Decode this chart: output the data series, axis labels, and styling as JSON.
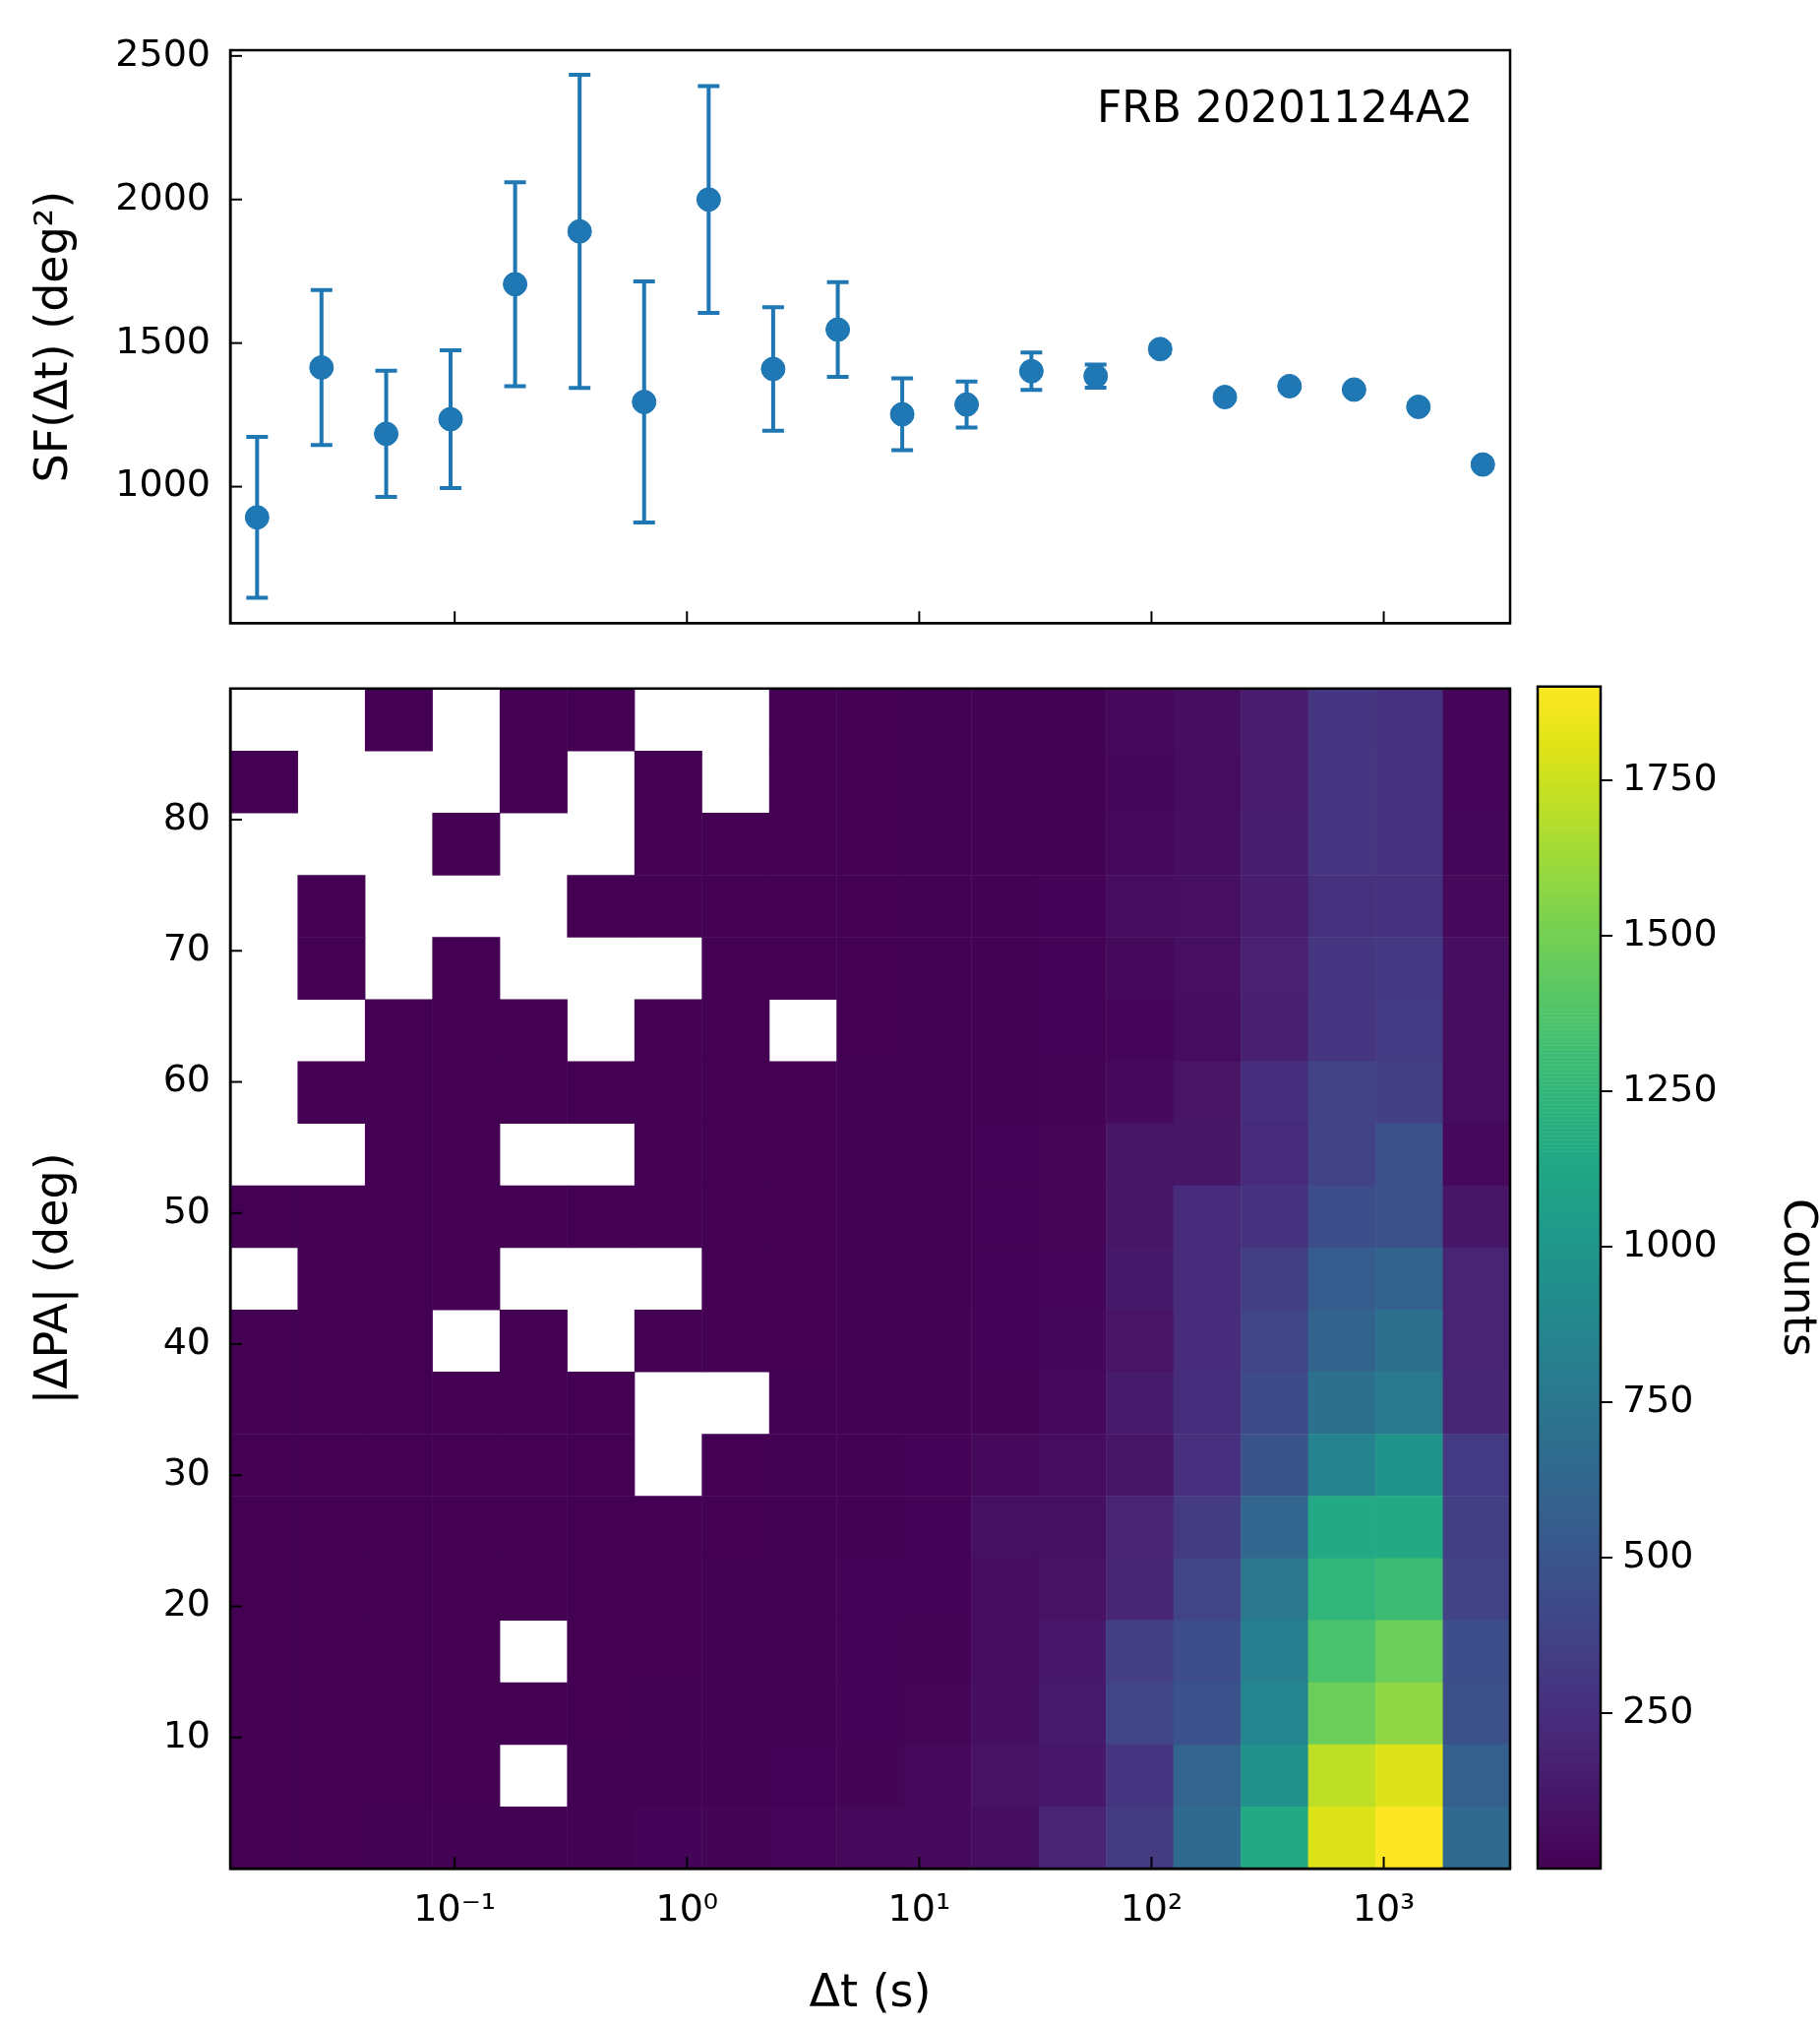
{
  "chart_data": [
    {
      "type": "scatter",
      "ylabel": "SF(Δt) (deg²)",
      "annotations": [
        "FRB 20201124A2"
      ],
      "color": "#1f77b4",
      "marker": "circle",
      "log": "x",
      "tick_labels": "y",
      "x": [
        0.0141,
        0.0267,
        0.0507,
        0.096,
        0.182,
        0.345,
        0.654,
        1.24,
        2.35,
        4.46,
        8.45,
        16.0,
        30.4,
        57.5,
        109,
        207,
        393,
        745,
        1410,
        2670
      ],
      "values": [
        893,
        1415,
        1184,
        1235,
        1705,
        1889,
        1295,
        2000,
        1410,
        1547,
        1252,
        1286,
        1402,
        1385,
        1479,
        1312,
        1350,
        1338,
        1278,
        1077
      ],
      "errors": [
        280,
        270,
        220,
        240,
        355,
        545,
        420,
        395,
        215,
        165,
        125,
        80,
        65,
        40,
        15,
        null,
        null,
        null,
        null,
        null
      ],
      "xlim": [
        0.0108,
        3500
      ],
      "xticks": [
        0.1,
        1,
        10,
        100,
        1000
      ],
      "ylim": [
        525,
        2520
      ],
      "yticks": [
        1000,
        1500,
        2000,
        2500
      ]
    },
    {
      "type": "heatmap",
      "xlabel": "Δt (s)",
      "ylabel": "|ΔPA| (deg)",
      "clabel": "Counts",
      "log": "x",
      "x": [
        0.01508,
        0.0294,
        0.05734,
        0.1118,
        0.2181,
        0.4252,
        0.8292,
        1.617,
        3.153,
        6.149,
        11.99,
        23.38,
        45.6,
        88.9,
        173.4,
        338.1,
        659.3,
        1286,
        2507
      ],
      "xlim": [
        0.0108,
        3500
      ],
      "xticks": [
        {
          "value": 0.1,
          "label": "10⁻¹"
        },
        {
          "value": 1,
          "label": "10⁰"
        },
        {
          "value": 10,
          "label": "10¹"
        },
        {
          "value": 100,
          "label": "10²"
        },
        {
          "value": 1000,
          "label": "10³"
        }
      ],
      "ylim": [
        0,
        90
      ],
      "yticks": [
        10,
        20,
        30,
        40,
        50,
        60,
        70,
        80
      ],
      "clim": [
        1,
        1900
      ],
      "cticks": [
        250,
        500,
        750,
        1000,
        1250,
        1500,
        1750
      ],
      "cells": [
        [
          null,
          null,
          1,
          null,
          1,
          1,
          null,
          null,
          2,
          3,
          4,
          6,
          8,
          40,
          70,
          150,
          290,
          270,
          30
        ],
        [
          2,
          null,
          null,
          null,
          1,
          null,
          1,
          null,
          2,
          3,
          4,
          6,
          8,
          35,
          60,
          150,
          300,
          280,
          30
        ],
        [
          null,
          null,
          null,
          1,
          null,
          null,
          1,
          1,
          2,
          3,
          4,
          6,
          8,
          40,
          70,
          160,
          290,
          280,
          35
        ],
        [
          null,
          1,
          null,
          null,
          null,
          1,
          1,
          2,
          2,
          3,
          4,
          7,
          10,
          60,
          75,
          150,
          270,
          270,
          40
        ],
        [
          null,
          1,
          null,
          1,
          null,
          null,
          null,
          2,
          2,
          3,
          4,
          7,
          10,
          45,
          75,
          175,
          300,
          310,
          70
        ],
        [
          null,
          null,
          1,
          1,
          1,
          null,
          2,
          2,
          null,
          3,
          5,
          8,
          12,
          30,
          60,
          170,
          290,
          320,
          60
        ],
        [
          null,
          1,
          1,
          1,
          1,
          1,
          2,
          2,
          3,
          4,
          5,
          8,
          20,
          50,
          100,
          250,
          370,
          350,
          60
        ],
        [
          null,
          null,
          1,
          1,
          null,
          null,
          2,
          2,
          3,
          4,
          6,
          10,
          25,
          110,
          110,
          230,
          370,
          460,
          40
        ],
        [
          1,
          1,
          1,
          1,
          1,
          1,
          2,
          2,
          3,
          4,
          6,
          10,
          25,
          110,
          240,
          280,
          440,
          460,
          110
        ],
        [
          null,
          1,
          1,
          1,
          null,
          null,
          null,
          2,
          3,
          4,
          7,
          12,
          30,
          130,
          240,
          350,
          550,
          600,
          190
        ],
        [
          1,
          1,
          1,
          null,
          1,
          null,
          2,
          2,
          3,
          5,
          7,
          15,
          35,
          100,
          240,
          380,
          600,
          700,
          190
        ],
        [
          1,
          1,
          1,
          1,
          1,
          1,
          null,
          null,
          4,
          6,
          8,
          20,
          40,
          140,
          250,
          420,
          700,
          760,
          200
        ],
        [
          1,
          1,
          1,
          1,
          1,
          1,
          null,
          3,
          4,
          6,
          10,
          50,
          60,
          110,
          260,
          480,
          840,
          970,
          320
        ],
        [
          2,
          2,
          2,
          2,
          2,
          2,
          3,
          3,
          5,
          8,
          12,
          80,
          80,
          190,
          330,
          620,
          1150,
          1150,
          350
        ],
        [
          2,
          2,
          2,
          2,
          2,
          2,
          3,
          4,
          5,
          10,
          15,
          60,
          90,
          200,
          380,
          750,
          1240,
          1300,
          370
        ],
        [
          2,
          2,
          2,
          2,
          null,
          3,
          3,
          4,
          6,
          12,
          20,
          60,
          120,
          350,
          440,
          810,
          1350,
          1470,
          450
        ],
        [
          2,
          2,
          2,
          2,
          3,
          3,
          4,
          5,
          7,
          15,
          25,
          70,
          140,
          380,
          470,
          860,
          1470,
          1580,
          460
        ],
        [
          2,
          2,
          3,
          3,
          null,
          4,
          5,
          6,
          10,
          20,
          40,
          90,
          120,
          300,
          610,
          950,
          1710,
          1800,
          570
        ],
        [
          3,
          3,
          5,
          5,
          4,
          5,
          15,
          20,
          30,
          40,
          50,
          70,
          190,
          330,
          650,
          1150,
          1800,
          1900,
          650
        ]
      ]
    }
  ]
}
